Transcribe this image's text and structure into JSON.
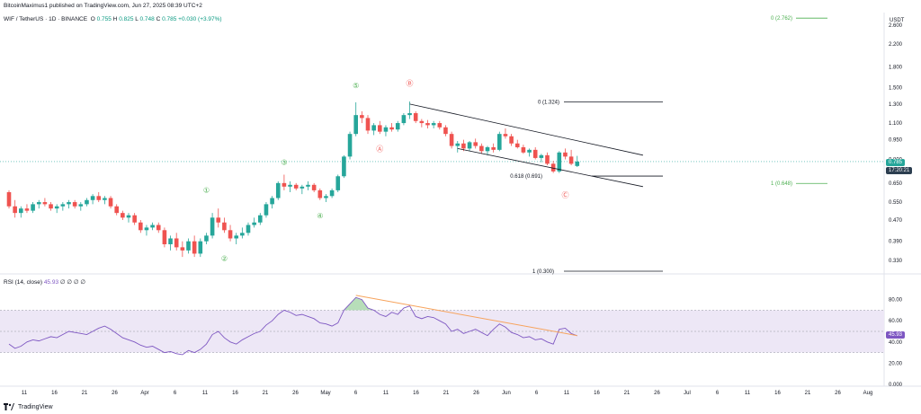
{
  "header": {
    "published_text": "BitcoinMaximus1 published on TradingView.com, Jun 27, 2025 08:39 UTC+2"
  },
  "symbol_bar": {
    "symbol_text": "WIF / TetherUS · 1D · BINANCE",
    "o_label": "O",
    "o_value": "0.755",
    "h_label": "H",
    "h_value": "0.825",
    "l_label": "L",
    "l_value": "0.748",
    "c_label": "C",
    "c_value": "0.785",
    "change_text": "+0.030 (+3.97%)"
  },
  "price_axis": {
    "currency": "USDT",
    "ticks": [
      "2.600",
      "2.200",
      "1.800",
      "1.500",
      "1.300",
      "1.100",
      "0.950",
      "0.800",
      "0.650",
      "0.550",
      "0.470",
      "0.390",
      "0.330"
    ],
    "last_price_tag": "0.785",
    "countdown_tag": "17:20:21"
  },
  "rsi": {
    "legend": "RSI (14, close)",
    "value_text": "45.93",
    "extra_values": [
      "∅",
      "∅",
      "∅",
      "∅"
    ],
    "ticks": [
      "80.00",
      "60.00",
      "40.00",
      "20.00",
      "0.000"
    ],
    "value_tag": "45.93"
  },
  "time_axis": {
    "labels": [
      "11",
      "16",
      "21",
      "26",
      "Apr",
      "6",
      "11",
      "16",
      "21",
      "26",
      "May",
      "6",
      "11",
      "16",
      "21",
      "26",
      "Jun",
      "6",
      "11",
      "16",
      "21",
      "26",
      "Jul",
      "6",
      "11",
      "16",
      "21",
      "26",
      "Aug"
    ]
  },
  "annotations": {
    "wave_labels": [
      "①",
      "②",
      "③",
      "④",
      "⑤",
      "Ⓐ",
      "Ⓑ",
      "Ⓒ"
    ],
    "fib_top": "0 (1.324)",
    "fib_mid": "0.618 (0.691)",
    "fib_bot": "1 (0.300)",
    "ext_top": "0 (2.762)",
    "ext_mid": "1 (0.648)"
  },
  "brand": {
    "name": "TradingView"
  },
  "colors": {
    "up": "#26a69a",
    "down": "#ef5350",
    "rsi_line": "#7e57c2",
    "rsi_band": "#ede7f6",
    "trend_orange": "#f7a35c",
    "ext_green": "#4caf50",
    "last_price": "#26a69a",
    "countdown": "#2c3e50"
  },
  "chart_data": {
    "type": "candlestick",
    "x_start": "2025-03-08",
    "interval": "1D",
    "y_scale": "log",
    "ylim": [
      0.3,
      2.9
    ],
    "candles": [
      [
        0.6,
        0.61,
        0.52,
        0.53
      ],
      [
        0.53,
        0.56,
        0.48,
        0.5
      ],
      [
        0.5,
        0.53,
        0.48,
        0.52
      ],
      [
        0.52,
        0.54,
        0.5,
        0.51
      ],
      [
        0.51,
        0.55,
        0.5,
        0.54
      ],
      [
        0.54,
        0.56,
        0.52,
        0.55
      ],
      [
        0.55,
        0.57,
        0.53,
        0.54
      ],
      [
        0.54,
        0.55,
        0.51,
        0.52
      ],
      [
        0.52,
        0.54,
        0.5,
        0.53
      ],
      [
        0.53,
        0.55,
        0.51,
        0.54
      ],
      [
        0.54,
        0.56,
        0.52,
        0.55
      ],
      [
        0.55,
        0.56,
        0.52,
        0.53
      ],
      [
        0.53,
        0.55,
        0.51,
        0.54
      ],
      [
        0.54,
        0.57,
        0.53,
        0.56
      ],
      [
        0.56,
        0.59,
        0.54,
        0.58
      ],
      [
        0.58,
        0.6,
        0.55,
        0.56
      ],
      [
        0.56,
        0.58,
        0.54,
        0.57
      ],
      [
        0.57,
        0.58,
        0.52,
        0.53
      ],
      [
        0.53,
        0.54,
        0.49,
        0.5
      ],
      [
        0.5,
        0.51,
        0.47,
        0.48
      ],
      [
        0.48,
        0.5,
        0.46,
        0.49
      ],
      [
        0.49,
        0.5,
        0.45,
        0.46
      ],
      [
        0.46,
        0.47,
        0.42,
        0.43
      ],
      [
        0.43,
        0.45,
        0.41,
        0.44
      ],
      [
        0.44,
        0.46,
        0.43,
        0.45
      ],
      [
        0.45,
        0.46,
        0.42,
        0.43
      ],
      [
        0.43,
        0.44,
        0.37,
        0.38
      ],
      [
        0.38,
        0.41,
        0.36,
        0.4
      ],
      [
        0.4,
        0.42,
        0.36,
        0.37
      ],
      [
        0.37,
        0.39,
        0.34,
        0.36
      ],
      [
        0.36,
        0.4,
        0.35,
        0.39
      ],
      [
        0.39,
        0.41,
        0.34,
        0.35
      ],
      [
        0.35,
        0.4,
        0.34,
        0.39
      ],
      [
        0.39,
        0.42,
        0.38,
        0.41
      ],
      [
        0.41,
        0.5,
        0.4,
        0.48
      ],
      [
        0.48,
        0.52,
        0.44,
        0.46
      ],
      [
        0.46,
        0.48,
        0.42,
        0.43
      ],
      [
        0.43,
        0.45,
        0.39,
        0.4
      ],
      [
        0.4,
        0.42,
        0.38,
        0.41
      ],
      [
        0.41,
        0.44,
        0.4,
        0.42
      ],
      [
        0.42,
        0.46,
        0.41,
        0.45
      ],
      [
        0.45,
        0.48,
        0.44,
        0.46
      ],
      [
        0.46,
        0.5,
        0.45,
        0.49
      ],
      [
        0.49,
        0.55,
        0.48,
        0.54
      ],
      [
        0.54,
        0.58,
        0.52,
        0.57
      ],
      [
        0.57,
        0.66,
        0.56,
        0.65
      ],
      [
        0.65,
        0.7,
        0.61,
        0.63
      ],
      [
        0.63,
        0.66,
        0.6,
        0.64
      ],
      [
        0.64,
        0.65,
        0.61,
        0.62
      ],
      [
        0.62,
        0.64,
        0.59,
        0.63
      ],
      [
        0.63,
        0.66,
        0.61,
        0.64
      ],
      [
        0.64,
        0.65,
        0.6,
        0.61
      ],
      [
        0.61,
        0.62,
        0.56,
        0.57
      ],
      [
        0.57,
        0.59,
        0.55,
        0.58
      ],
      [
        0.58,
        0.62,
        0.57,
        0.61
      ],
      [
        0.61,
        0.7,
        0.6,
        0.69
      ],
      [
        0.69,
        0.83,
        0.68,
        0.82
      ],
      [
        0.82,
        1.02,
        0.8,
        1.0
      ],
      [
        1.0,
        1.32,
        0.98,
        1.18
      ],
      [
        1.18,
        1.22,
        1.1,
        1.15
      ],
      [
        1.15,
        1.18,
        1.0,
        1.03
      ],
      [
        1.03,
        1.1,
        0.99,
        1.08
      ],
      [
        1.08,
        1.12,
        1.0,
        1.02
      ],
      [
        1.02,
        1.08,
        0.98,
        1.06
      ],
      [
        1.06,
        1.1,
        1.02,
        1.04
      ],
      [
        1.04,
        1.12,
        1.02,
        1.1
      ],
      [
        1.1,
        1.2,
        1.08,
        1.18
      ],
      [
        1.18,
        1.33,
        1.14,
        1.2
      ],
      [
        1.2,
        1.22,
        1.1,
        1.12
      ],
      [
        1.12,
        1.14,
        1.06,
        1.1
      ],
      [
        1.1,
        1.13,
        1.05,
        1.08
      ],
      [
        1.08,
        1.12,
        1.05,
        1.1
      ],
      [
        1.1,
        1.12,
        1.04,
        1.06
      ],
      [
        1.06,
        1.08,
        0.98,
        1.0
      ],
      [
        1.0,
        1.02,
        0.88,
        0.9
      ],
      [
        0.9,
        0.94,
        0.85,
        0.92
      ],
      [
        0.92,
        0.95,
        0.86,
        0.88
      ],
      [
        0.88,
        0.94,
        0.86,
        0.93
      ],
      [
        0.93,
        0.96,
        0.88,
        0.9
      ],
      [
        0.9,
        0.92,
        0.84,
        0.86
      ],
      [
        0.86,
        0.9,
        0.83,
        0.89
      ],
      [
        0.89,
        0.92,
        0.85,
        0.87
      ],
      [
        0.87,
        1.02,
        0.86,
        1.0
      ],
      [
        1.0,
        1.05,
        0.96,
        0.98
      ],
      [
        0.98,
        1.0,
        0.9,
        0.92
      ],
      [
        0.92,
        0.95,
        0.88,
        0.89
      ],
      [
        0.89,
        0.91,
        0.84,
        0.85
      ],
      [
        0.85,
        0.88,
        0.82,
        0.87
      ],
      [
        0.87,
        0.89,
        0.8,
        0.81
      ],
      [
        0.81,
        0.84,
        0.78,
        0.83
      ],
      [
        0.83,
        0.85,
        0.76,
        0.77
      ],
      [
        0.77,
        0.79,
        0.71,
        0.72
      ],
      [
        0.72,
        0.86,
        0.71,
        0.85
      ],
      [
        0.85,
        0.88,
        0.8,
        0.82
      ],
      [
        0.82,
        0.87,
        0.76,
        0.77
      ],
      [
        0.755,
        0.825,
        0.748,
        0.785
      ]
    ],
    "fib_levels": [
      {
        "label": "0 (1.324)",
        "value": 1.324
      },
      {
        "label": "0.618 (0.691)",
        "value": 0.691
      },
      {
        "label": "1 (0.300)",
        "value": 0.3
      }
    ],
    "extension_levels": [
      {
        "label": "0 (2.762)",
        "value": 2.762
      },
      {
        "label": "1 (0.648)",
        "value": 0.648
      }
    ],
    "channel": {
      "upper": [
        [
          67,
          1.3
        ],
        [
          106,
          0.83
        ]
      ],
      "lower": [
        [
          75,
          0.88
        ],
        [
          106,
          0.63
        ]
      ]
    },
    "waves": [
      {
        "label": "①",
        "index": 33,
        "price": 0.58,
        "pos": "above"
      },
      {
        "label": "②",
        "index": 36,
        "price": 0.345,
        "pos": "below"
      },
      {
        "label": "③",
        "index": 46,
        "price": 0.74,
        "pos": "above"
      },
      {
        "label": "④",
        "index": 52,
        "price": 0.5,
        "pos": "below"
      },
      {
        "label": "⑤",
        "index": 58,
        "price": 1.45,
        "pos": "above"
      },
      {
        "label": "Ⓐ",
        "index": 62,
        "price": 0.9,
        "pos": "below"
      },
      {
        "label": "Ⓑ",
        "index": 67,
        "price": 1.48,
        "pos": "above"
      },
      {
        "label": "Ⓒ",
        "index": 93,
        "price": 0.6,
        "pos": "below"
      }
    ],
    "rsi_series": [
      38,
      34,
      36,
      40,
      42,
      41,
      43,
      45,
      44,
      47,
      50,
      49,
      48,
      47,
      50,
      53,
      55,
      52,
      48,
      44,
      42,
      40,
      37,
      35,
      36,
      33,
      30,
      31,
      29,
      28,
      32,
      30,
      33,
      38,
      47,
      50,
      44,
      40,
      38,
      42,
      45,
      48,
      50,
      56,
      60,
      66,
      70,
      68,
      65,
      66,
      64,
      62,
      58,
      57,
      55,
      58,
      70,
      76,
      82,
      80,
      72,
      70,
      66,
      64,
      68,
      66,
      72,
      74,
      64,
      62,
      64,
      63,
      60,
      57,
      50,
      52,
      48,
      50,
      52,
      49,
      46,
      52,
      57,
      54,
      49,
      47,
      44,
      45,
      42,
      43,
      40,
      38,
      52,
      53,
      48,
      45.93
    ],
    "rsi_ylim": [
      0,
      100
    ],
    "rsi_band": [
      30,
      70
    ],
    "rsi_trendline": [
      [
        58,
        84
      ],
      [
        95,
        46
      ]
    ],
    "rsi_peak_fill": [
      [
        56,
        70
      ],
      [
        57,
        76
      ],
      [
        58,
        82
      ],
      [
        59,
        80
      ],
      [
        60,
        72
      ],
      [
        61,
        70
      ]
    ]
  }
}
